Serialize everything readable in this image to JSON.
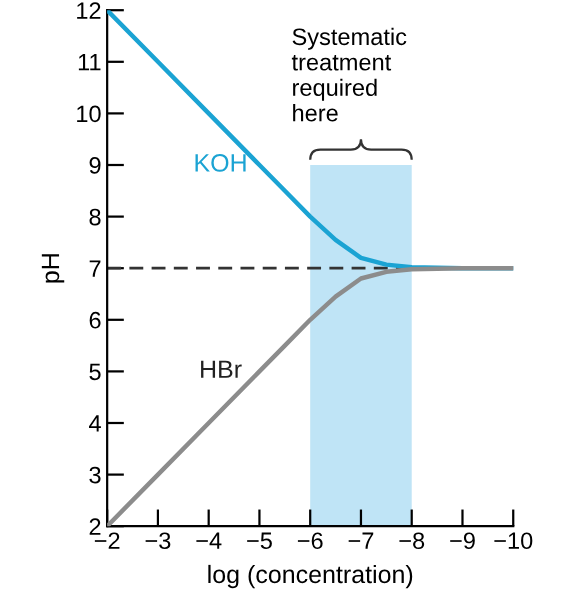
{
  "chart_data": {
    "type": "line",
    "xlabel": "log (concentration)",
    "ylabel": "pH",
    "xlim": [
      -2,
      -10
    ],
    "ylim": [
      2,
      12
    ],
    "xticks": [
      {
        "value": -2,
        "label": "−2"
      },
      {
        "value": -3,
        "label": "−3"
      },
      {
        "value": -4,
        "label": "−4"
      },
      {
        "value": -5,
        "label": "−5"
      },
      {
        "value": -6,
        "label": "−6"
      },
      {
        "value": -7,
        "label": "−7"
      },
      {
        "value": -8,
        "label": "−8"
      },
      {
        "value": -9,
        "label": "−9"
      },
      {
        "value": -10,
        "label": "−10"
      }
    ],
    "yticks": [
      2,
      3,
      4,
      5,
      6,
      7,
      8,
      9,
      10,
      11,
      12
    ],
    "series": [
      {
        "type": "area",
        "color": "#bfe4f6",
        "x": [
          -6,
          -8
        ],
        "values": [
          9,
          9
        ]
      },
      {
        "name": "KOH",
        "color": "#1ba3d3",
        "x": [
          -2,
          -3,
          -4,
          -5,
          -5.5,
          -6,
          -6.5,
          -7,
          -7.5,
          -8,
          -9,
          -10
        ],
        "values": [
          12,
          11,
          10,
          9,
          8.5,
          8.0,
          7.55,
          7.2,
          7.07,
          7.02,
          7,
          7
        ]
      },
      {
        "name": "HBr",
        "color": "#8c8c8c",
        "x": [
          -2,
          -3,
          -4,
          -5,
          -5.5,
          -6,
          -6.5,
          -7,
          -7.5,
          -8,
          -9,
          -10
        ],
        "values": [
          2,
          3,
          4,
          5,
          5.5,
          6.0,
          6.45,
          6.8,
          6.93,
          6.98,
          7,
          7
        ]
      }
    ],
    "ref_lines": [
      {
        "axis": "y",
        "value": 7,
        "color": "#333333",
        "line_style": "dashed"
      }
    ],
    "annotations": [
      {
        "text": "Systematic\ntreatment\nrequired\nhere",
        "x": -7,
        "y": 9
      }
    ],
    "grid": false,
    "legend": false
  }
}
